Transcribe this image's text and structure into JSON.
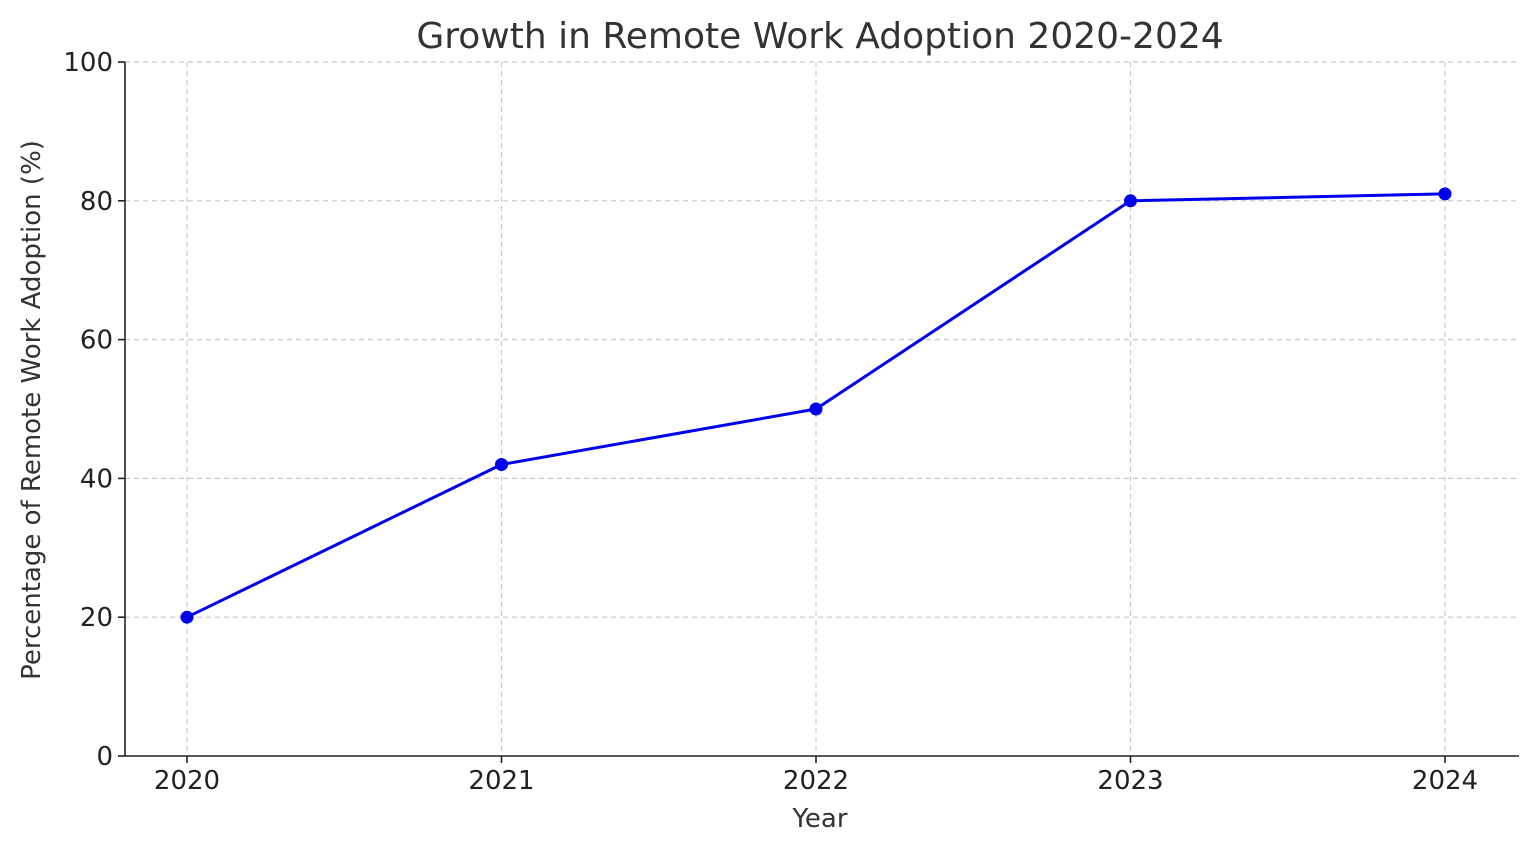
{
  "chart_data": {
    "type": "line",
    "title": "Growth in Remote Work Adoption 2020-2024",
    "xlabel": "Year",
    "ylabel": "Percentage of Remote Work Adoption (%)",
    "x": [
      "2020",
      "2021",
      "2022",
      "2023",
      "2024"
    ],
    "series": [
      {
        "values": [
          20,
          42,
          50,
          80,
          81
        ],
        "color": "#0000ee",
        "marker": "circle"
      }
    ],
    "ylim": [
      0,
      100
    ],
    "yticks": [
      0,
      20,
      40,
      60,
      80,
      100
    ],
    "grid": true,
    "legend": "none"
  }
}
